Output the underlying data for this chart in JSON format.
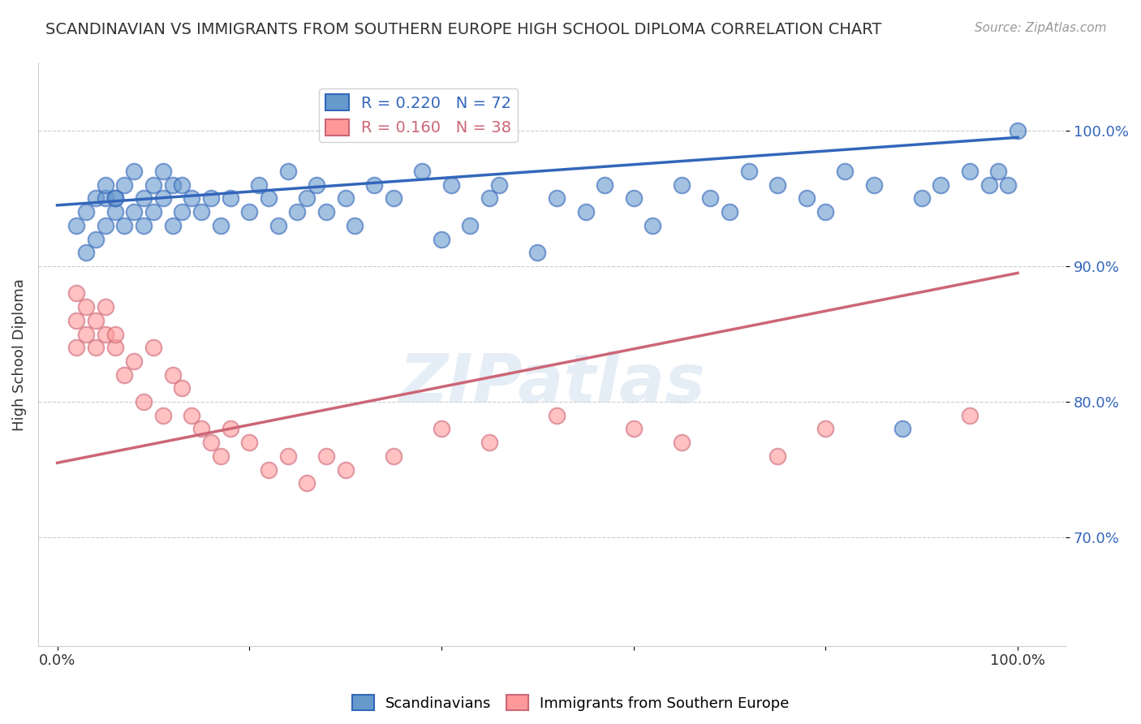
{
  "title": "SCANDINAVIAN VS IMMIGRANTS FROM SOUTHERN EUROPE HIGH SCHOOL DIPLOMA CORRELATION CHART",
  "source_text": "Source: ZipAtlas.com",
  "xlabel": "",
  "ylabel": "High School Diploma",
  "watermark": "ZIPatlas",
  "blue_label": "Scandinavians",
  "pink_label": "Immigrants from Southern Europe",
  "blue_R": 0.22,
  "blue_N": 72,
  "pink_R": 0.16,
  "pink_N": 38,
  "blue_color": "#6699CC",
  "pink_color": "#FF9999",
  "blue_line_color": "#3366BB",
  "pink_line_color": "#CC6677",
  "blue_scatter_x": [
    0.02,
    0.03,
    0.03,
    0.04,
    0.04,
    0.05,
    0.05,
    0.05,
    0.06,
    0.06,
    0.06,
    0.07,
    0.07,
    0.08,
    0.08,
    0.09,
    0.09,
    0.1,
    0.1,
    0.11,
    0.11,
    0.12,
    0.12,
    0.13,
    0.13,
    0.14,
    0.15,
    0.16,
    0.17,
    0.18,
    0.2,
    0.21,
    0.22,
    0.23,
    0.24,
    0.25,
    0.26,
    0.27,
    0.28,
    0.3,
    0.31,
    0.33,
    0.35,
    0.38,
    0.4,
    0.41,
    0.43,
    0.45,
    0.46,
    0.5,
    0.52,
    0.55,
    0.57,
    0.6,
    0.62,
    0.65,
    0.68,
    0.7,
    0.72,
    0.75,
    0.78,
    0.8,
    0.82,
    0.85,
    0.88,
    0.9,
    0.92,
    0.95,
    0.97,
    0.98,
    0.99,
    1.0
  ],
  "blue_scatter_y": [
    0.93,
    0.91,
    0.94,
    0.92,
    0.95,
    0.93,
    0.95,
    0.96,
    0.94,
    0.95,
    0.95,
    0.93,
    0.96,
    0.94,
    0.97,
    0.93,
    0.95,
    0.94,
    0.96,
    0.95,
    0.97,
    0.93,
    0.96,
    0.94,
    0.96,
    0.95,
    0.94,
    0.95,
    0.93,
    0.95,
    0.94,
    0.96,
    0.95,
    0.93,
    0.97,
    0.94,
    0.95,
    0.96,
    0.94,
    0.95,
    0.93,
    0.96,
    0.95,
    0.97,
    0.92,
    0.96,
    0.93,
    0.95,
    0.96,
    0.91,
    0.95,
    0.94,
    0.96,
    0.95,
    0.93,
    0.96,
    0.95,
    0.94,
    0.97,
    0.96,
    0.95,
    0.94,
    0.97,
    0.96,
    0.78,
    0.95,
    0.96,
    0.97,
    0.96,
    0.97,
    0.96,
    1.0
  ],
  "pink_scatter_x": [
    0.02,
    0.02,
    0.02,
    0.03,
    0.03,
    0.04,
    0.04,
    0.05,
    0.05,
    0.06,
    0.06,
    0.07,
    0.08,
    0.09,
    0.1,
    0.11,
    0.12,
    0.13,
    0.14,
    0.15,
    0.16,
    0.17,
    0.18,
    0.2,
    0.22,
    0.24,
    0.26,
    0.28,
    0.3,
    0.35,
    0.4,
    0.45,
    0.52,
    0.6,
    0.65,
    0.75,
    0.8,
    0.95
  ],
  "pink_scatter_y": [
    0.88,
    0.86,
    0.84,
    0.87,
    0.85,
    0.86,
    0.84,
    0.87,
    0.85,
    0.84,
    0.85,
    0.82,
    0.83,
    0.8,
    0.84,
    0.79,
    0.82,
    0.81,
    0.79,
    0.78,
    0.77,
    0.76,
    0.78,
    0.77,
    0.75,
    0.76,
    0.74,
    0.76,
    0.75,
    0.76,
    0.78,
    0.77,
    0.79,
    0.78,
    0.77,
    0.76,
    0.78,
    0.79
  ],
  "blue_trend_x": [
    0.0,
    1.0
  ],
  "blue_trend_y": [
    0.945,
    0.995
  ],
  "pink_trend_x": [
    0.0,
    1.0
  ],
  "pink_trend_y": [
    0.755,
    0.895
  ],
  "yticks": [
    0.7,
    0.8,
    0.9,
    1.0
  ],
  "ytick_labels": [
    "70.0%",
    "80.0%",
    "90.0%",
    "100.0%"
  ],
  "xticks": [
    0.0,
    0.2,
    0.4,
    0.6,
    0.8,
    1.0
  ],
  "xtick_labels": [
    "0.0%",
    "",
    "",
    "",
    "",
    "100.0%"
  ],
  "ylim": [
    0.62,
    1.05
  ],
  "xlim": [
    -0.02,
    1.05
  ],
  "grid_color": "#CCCCCC",
  "background_color": "#FFFFFF"
}
